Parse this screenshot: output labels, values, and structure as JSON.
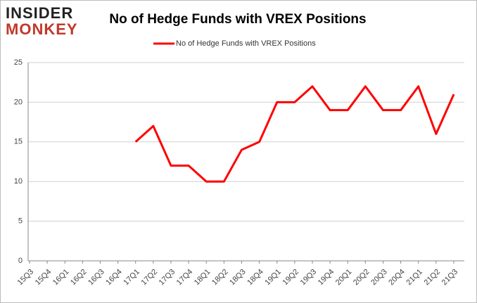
{
  "logo": {
    "top": "INSIDER",
    "bottom": "MONKEY"
  },
  "chart_data": {
    "type": "line",
    "title": "No of Hedge Funds with VREX Positions",
    "categories": [
      "15Q3",
      "15Q4",
      "16Q1",
      "16Q2",
      "16Q3",
      "16Q4",
      "17Q1",
      "17Q2",
      "17Q3",
      "17Q4",
      "18Q1",
      "18Q2",
      "18Q3",
      "18Q4",
      "19Q1",
      "19Q2",
      "19Q3",
      "19Q4",
      "20Q1",
      "20Q2",
      "20Q3",
      "20Q4",
      "21Q1",
      "21Q2",
      "21Q3"
    ],
    "series": [
      {
        "name": "No of Hedge Funds with VREX Positions",
        "color": "#ff0000",
        "values": [
          null,
          null,
          null,
          null,
          null,
          null,
          15,
          17,
          12,
          12,
          10,
          10,
          14,
          15,
          20,
          20,
          22,
          19,
          19,
          22,
          19,
          19,
          22,
          16,
          21
        ]
      }
    ],
    "ylim": [
      0,
      25
    ],
    "yticks": [
      0,
      5,
      10,
      15,
      20,
      25
    ],
    "grid": true,
    "legend": "top"
  }
}
